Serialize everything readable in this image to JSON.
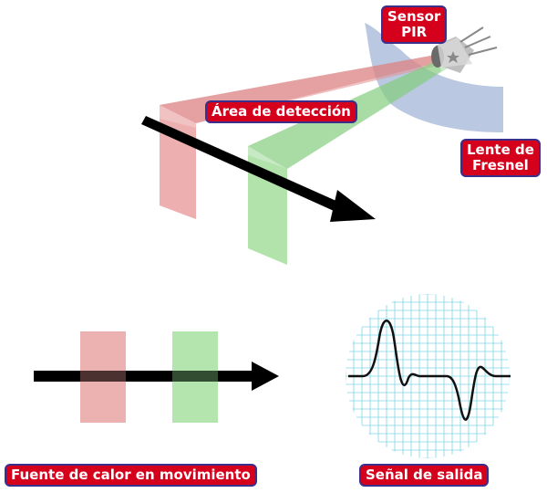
{
  "labels": {
    "sensor_line1": "Sensor",
    "sensor_line2": "PIR",
    "detection_area": "Área de detección",
    "lens_line1": "Lente de",
    "lens_line2": "Fresnel",
    "moving_heat_source": "Fuente de calor en movimiento",
    "output_signal": "Señal de salida"
  },
  "colors": {
    "label_bg": "#d4001c",
    "label_border": "#3a2f8a",
    "zone_red": "#e9a3a3",
    "zone_green": "#a8e0a0",
    "lens_blue": "#aebfdc",
    "grid_cyan": "#7fd6e6",
    "arrow": "#000000"
  }
}
